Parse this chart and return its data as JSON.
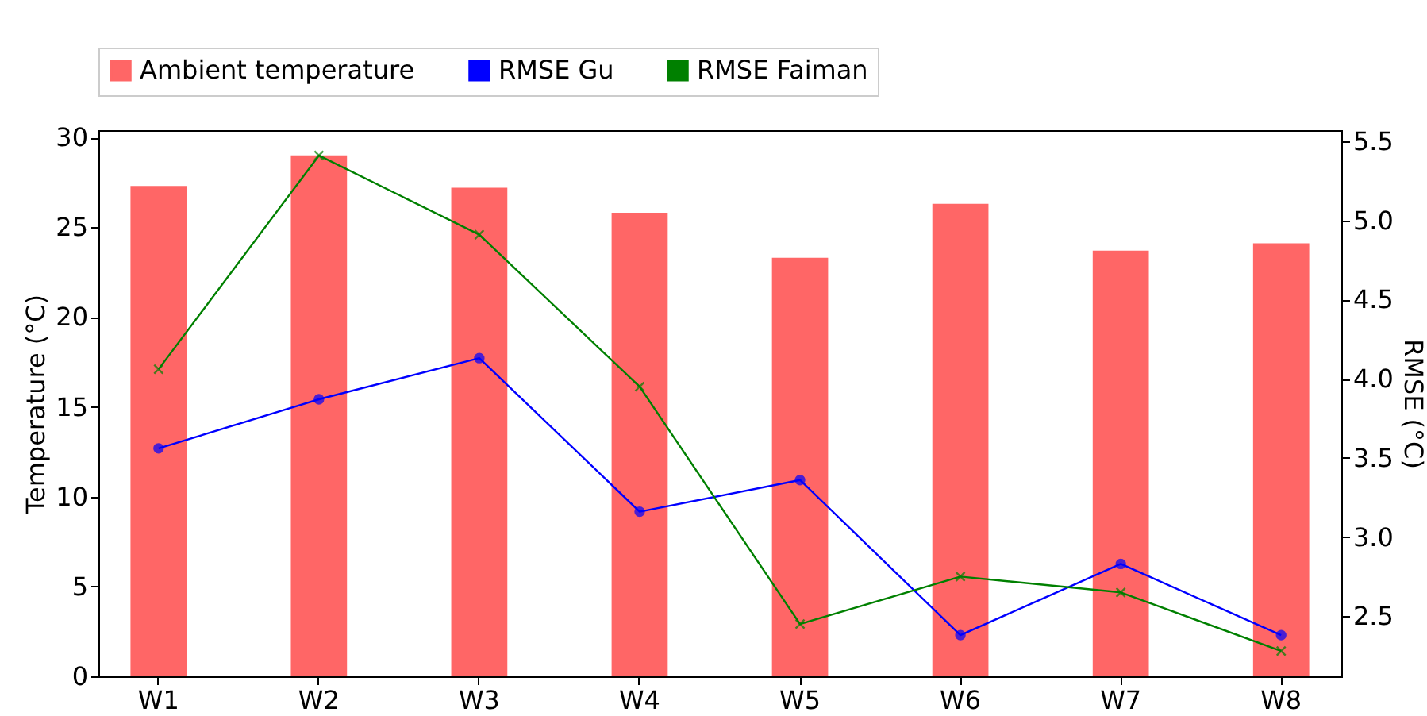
{
  "chart_data": {
    "type": "bar",
    "categories": [
      "W1",
      "W2",
      "W3",
      "W4",
      "W5",
      "W6",
      "W7",
      "W8"
    ],
    "ylabel": "Temperature (°C)",
    "y2label": "RMSE (°C)",
    "ylim": [
      0,
      30.4
    ],
    "yticks": [
      0,
      5,
      10,
      15,
      20,
      25,
      30
    ],
    "y2lim": [
      2.12,
      5.57
    ],
    "y2ticks": [
      2.5,
      {
        "value": 3,
        "label": "3.0"
      },
      3.5,
      {
        "value": 4,
        "label": "4.0"
      },
      4.5,
      {
        "value": 5,
        "label": "5.0"
      },
      5.5
    ],
    "grid": false,
    "legend": "top",
    "series": [
      {
        "name": "Ambient temperature",
        "color": "#ff6666",
        "values": [
          27.3,
          29.0,
          27.2,
          25.8,
          23.3,
          26.3,
          23.7,
          24.1
        ]
      },
      {
        "name": "RMSE Gu",
        "type": "line",
        "axis": "y2",
        "marker": "circle",
        "color": "#0000ff",
        "values": [
          3.56,
          3.87,
          4.13,
          3.16,
          3.36,
          2.38,
          2.83,
          2.38
        ]
      },
      {
        "name": "RMSE Faiman",
        "type": "line",
        "axis": "y2",
        "marker": "cross",
        "color": "#008000",
        "values": [
          4.06,
          5.41,
          4.91,
          3.95,
          2.45,
          2.75,
          2.65,
          2.28
        ]
      }
    ]
  }
}
